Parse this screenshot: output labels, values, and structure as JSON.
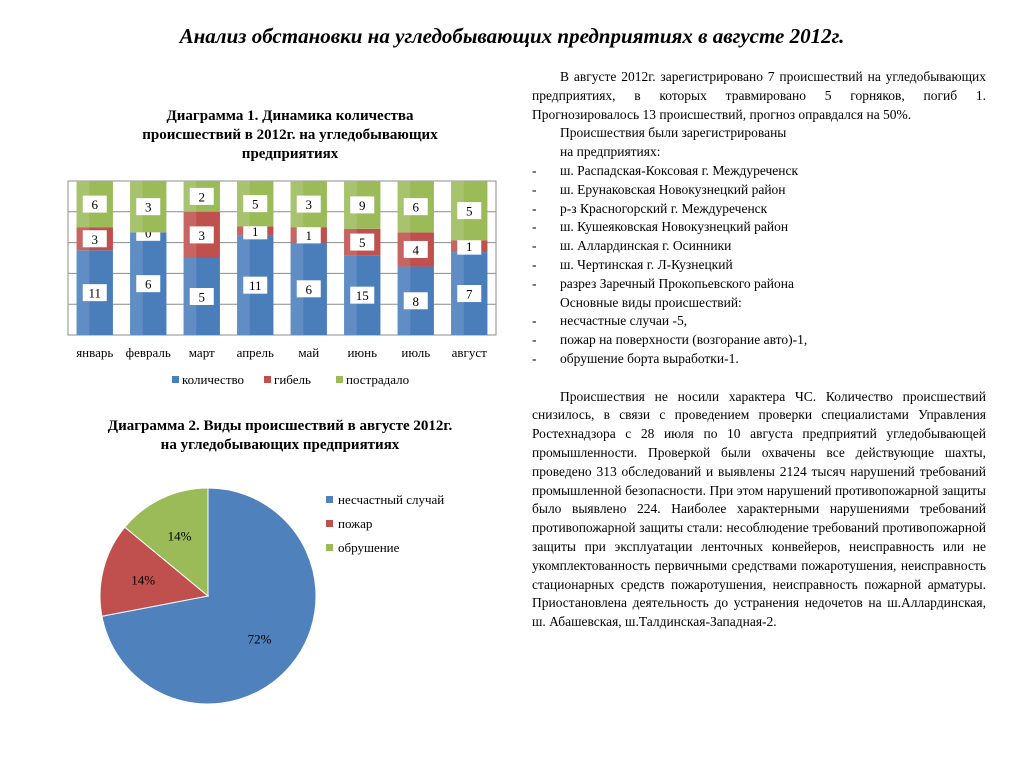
{
  "title": "Анализ обстановки на угледобывающих предприятиях в августе 2012г.",
  "chart_data": [
    {
      "type": "bar",
      "stacked": true,
      "title_lines": [
        "Диаграмма 1. Динамика количества",
        "происшествий в 2012г. на угледобывающих",
        "предприятиях"
      ],
      "categories": [
        "январь",
        "февраль",
        "март",
        "апрель",
        "май",
        "июнь",
        "июль",
        "август"
      ],
      "series": [
        {
          "name": "количество",
          "color": "#4a7ebb",
          "values": [
            11,
            6,
            5,
            11,
            6,
            15,
            8,
            7
          ]
        },
        {
          "name": "гибель",
          "color": "#c0504d",
          "values": [
            3,
            0,
            3,
            1,
            1,
            5,
            4,
            1
          ]
        },
        {
          "name": "пострадало",
          "color": "#9bbb59",
          "values": [
            6,
            3,
            2,
            5,
            3,
            9,
            6,
            5
          ]
        }
      ],
      "normalized": true,
      "grid": true,
      "legend": "bottom"
    },
    {
      "type": "pie",
      "title_lines": [
        "Диаграмма 2. Виды происшествий в августе 2012г.",
        "на угледобывающих предприятиях"
      ],
      "slices": [
        {
          "name": "несчастный случай",
          "value": 72,
          "label": "72%",
          "color": "#4f81bd"
        },
        {
          "name": "пожар",
          "value": 14,
          "label": "14%",
          "color": "#c0504d"
        },
        {
          "name": "обрушение",
          "value": 14,
          "label": "14%",
          "color": "#9bbb59"
        }
      ],
      "legend": "right"
    }
  ],
  "text": {
    "p1": "В августе 2012г. зарегистрировано  7 происшествий на угледобывающих предприятиях, в которых травмировано 5 горняков, погиб 1. Прогнозировалось 13 происшествий, прогноз оправдался на 50%.",
    "p2a": "Происшествия были зарегистрированы",
    "p2b": "на предприятиях:",
    "dash": "-",
    "list1": [
      "ш. Распадская-Коксовая г. Междуреченск",
      "ш. Ерунаковская Новокузнецкий район",
      "р-з Красногорский г. Междуреченск",
      "ш. Кушеяковская Новокузнецкий район",
      "ш. Аллардинская г. Осинники",
      "ш. Чертинская г. Л-Кузнецкий",
      "разрез  Заречный Прокопьевского  района"
    ],
    "p3": "Основные виды происшествий:",
    "list2": [
      "несчастные случаи -5,",
      "пожар на поверхности (возгорание авто)-1,",
      "обрушение борта выработки-1."
    ],
    "p4": "Происшествия не носили характера ЧС. Количество происшествий снизилось, в связи с проведением проверки специалистами Управления Ростехнадзора с 28 июля по 10 августа предприятий угледобывающей промышленности. Проверкой были охвачены все действующие шахты, проведено 313 обследований и выявлены 2124 тысяч нарушений требований промышленной безопасности. При этом нарушений противопожарной защиты было выявлено 224.  Наиболее характерными нарушениями требований противопожарной защиты стали: несоблюдение требований противопожарной защиты при эксплуатации ленточных конвейеров, неисправность или не укомплектованность первичными средствами пожаротушения, неисправность стационарных средств пожаротушения, неисправность пожарной арматуры. Приостановлена деятельность до устранения недочетов на ш.Аллардинская, ш. Абашевская, ш.Талдинская-Западная-2."
  }
}
